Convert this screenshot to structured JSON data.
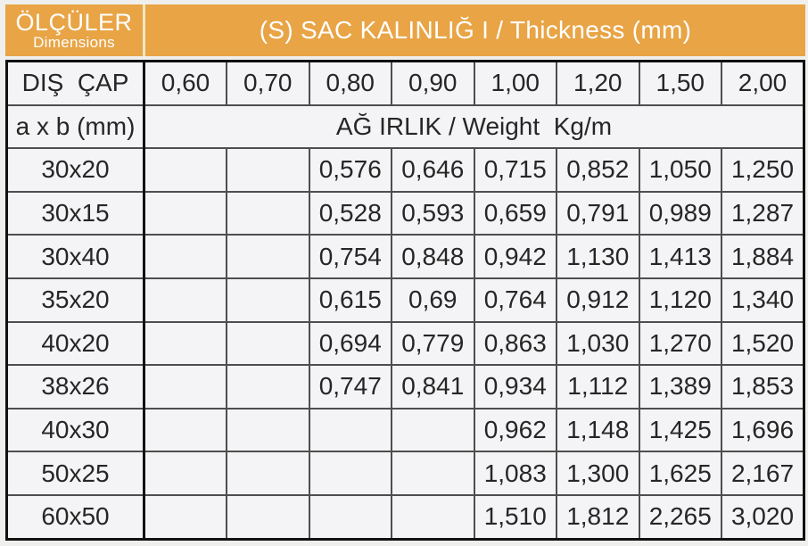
{
  "header": {
    "left_title": "ÖLÇÜLER",
    "left_subtitle": "Dimensions",
    "right_title": "(S) SAC KALINLIĞ I / Thickness (mm)",
    "accent_color": "#e8a445"
  },
  "table": {
    "outer_diameter_label": "DIŞ  ÇAP",
    "axb_label": "a x b (mm)",
    "weight_label": "AĞ IRLIK / Weight  Kg/m",
    "thickness_columns": [
      "0,60",
      "0,70",
      "0,80",
      "0,90",
      "1,00",
      "1,20",
      "1,50",
      "2,00"
    ],
    "rows": [
      {
        "size": "30x20",
        "values": [
          "",
          "",
          "0,576",
          "0,646",
          "0,715",
          "0,852",
          "1,050",
          "1,250"
        ]
      },
      {
        "size": "30x15",
        "values": [
          "",
          "",
          "0,528",
          "0,593",
          "0,659",
          "0,791",
          "0,989",
          "1,287"
        ]
      },
      {
        "size": "30x40",
        "values": [
          "",
          "",
          "0,754",
          "0,848",
          "0,942",
          "1,130",
          "1,413",
          "1,884"
        ]
      },
      {
        "size": "35x20",
        "values": [
          "",
          "",
          "0,615",
          "0,69",
          "0,764",
          "0,912",
          "1,120",
          "1,340"
        ]
      },
      {
        "size": "40x20",
        "values": [
          "",
          "",
          "0,694",
          "0,779",
          "0,863",
          "1,030",
          "1,270",
          "1,520"
        ]
      },
      {
        "size": "38x26",
        "values": [
          "",
          "",
          "0,747",
          "0,841",
          "0,934",
          "1,112",
          "1,389",
          "1,853"
        ]
      },
      {
        "size": "40x30",
        "values": [
          "",
          "",
          "",
          "",
          "0,962",
          "1,148",
          "1,425",
          "1,696"
        ]
      },
      {
        "size": "50x25",
        "values": [
          "",
          "",
          "",
          "",
          "1,083",
          "1,300",
          "1,625",
          "2,167"
        ]
      },
      {
        "size": "60x50",
        "values": [
          "",
          "",
          "",
          "",
          "1,510",
          "1,812",
          "2,265",
          "3,020"
        ]
      }
    ]
  }
}
